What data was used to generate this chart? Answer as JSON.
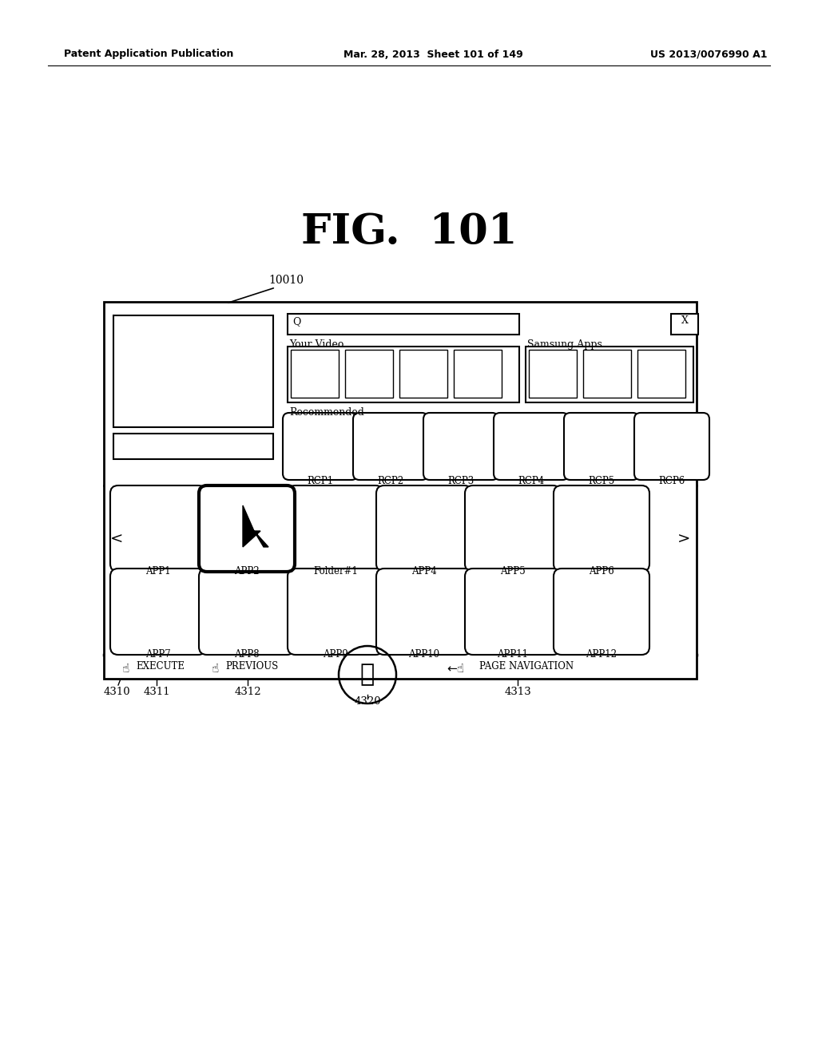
{
  "bg_color": "#ffffff",
  "header_left": "Patent Application Publication",
  "header_mid": "Mar. 28, 2013  Sheet 101 of 149",
  "header_right": "US 2013/0076990 A1",
  "fig_title": "FIG.  101",
  "label_10010": "10010",
  "rcp_labels": [
    "RCP1",
    "RCP2",
    "RCP3",
    "RCP4",
    "RCP5",
    "RCP6"
  ],
  "app_row1_labels": [
    "APP1",
    "APP2",
    "Folder#1",
    "APP4",
    "APP5",
    "APP6"
  ],
  "app_row2_labels": [
    "APP7",
    "APP8",
    "APP9",
    "APP10",
    "APP11",
    "APP12"
  ],
  "ref_labels": [
    "4310",
    "4311",
    "4312",
    "4320",
    "4313"
  ]
}
